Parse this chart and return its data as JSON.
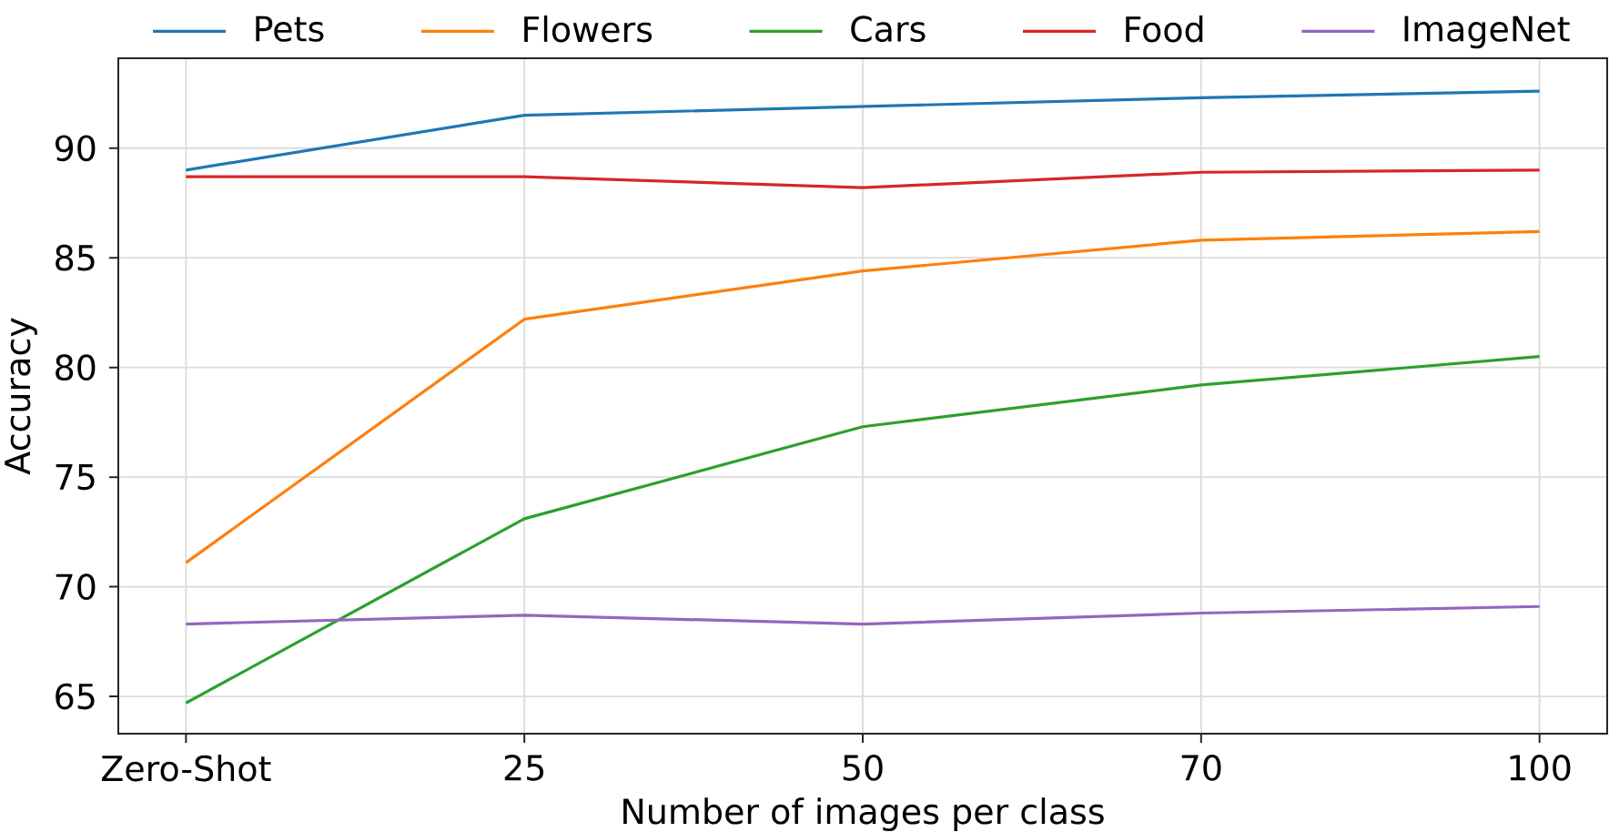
{
  "chart_data": {
    "type": "line",
    "categories": [
      "Zero-Shot",
      "25",
      "50",
      "70",
      "100"
    ],
    "series": [
      {
        "name": "Pets",
        "color": "#1f77b4",
        "values": [
          89.0,
          91.5,
          91.9,
          92.3,
          92.6
        ]
      },
      {
        "name": "Flowers",
        "color": "#ff7f0e",
        "values": [
          71.1,
          82.2,
          84.4,
          85.8,
          86.2
        ]
      },
      {
        "name": "Cars",
        "color": "#2ca02c",
        "values": [
          64.7,
          73.1,
          77.3,
          79.2,
          80.5
        ]
      },
      {
        "name": "Food",
        "color": "#d62728",
        "values": [
          88.7,
          88.7,
          88.2,
          88.9,
          89.0
        ]
      },
      {
        "name": "ImageNet",
        "color": "#9467bd",
        "values": [
          68.3,
          68.7,
          68.3,
          68.8,
          69.1
        ]
      }
    ],
    "xlabel": "Number of images per class",
    "ylabel": "Accuracy",
    "ylim": [
      63.3,
      94.1
    ],
    "yticks": [
      65,
      70,
      75,
      80,
      85,
      90
    ],
    "grid": true,
    "legend": "top",
    "line_style": "solid"
  }
}
